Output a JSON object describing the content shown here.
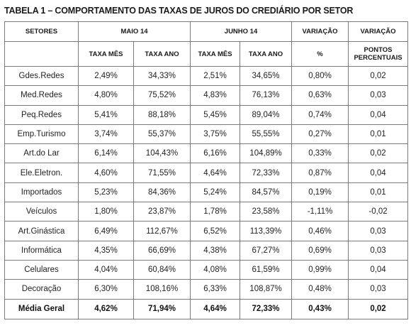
{
  "title": "TABELA 1 – COMPORTAMENTO DAS TAXAS DE JUROS DO CREDIÁRIO POR SETOR",
  "headers": {
    "setores": "SETORES",
    "maio": "MAIO 14",
    "junho": "JUNHO 14",
    "variacao_pct": "VARIAÇÃO",
    "variacao_pp": "VARIAÇÃO",
    "taxa_mes_maio": "TAXA MÊS",
    "taxa_ano_maio": "TAXA ANO",
    "taxa_mes_junho": "TAXA MÊS",
    "taxa_ano_junho": "TAXA ANO",
    "pct_sign": "%",
    "pontos_line1": "PONTOS",
    "pontos_line2": "PERCENTUAIS"
  },
  "rows": [
    {
      "setor": "Gdes.Redes",
      "maio_mes": "2,49%",
      "maio_ano": "34,33%",
      "junho_mes": "2,51%",
      "junho_ano": "34,65%",
      "var_pct": "0,80%",
      "var_pp": "0,02"
    },
    {
      "setor": "Med.Redes",
      "maio_mes": "4,80%",
      "maio_ano": "75,52%",
      "junho_mes": "4,83%",
      "junho_ano": "76,13%",
      "var_pct": "0,63%",
      "var_pp": "0,03"
    },
    {
      "setor": "Peq.Redes",
      "maio_mes": "5,41%",
      "maio_ano": "88,18%",
      "junho_mes": "5,45%",
      "junho_ano": "89,04%",
      "var_pct": "0,74%",
      "var_pp": "0,04"
    },
    {
      "setor": "Emp.Turismo",
      "maio_mes": "3,74%",
      "maio_ano": "55,37%",
      "junho_mes": "3,75%",
      "junho_ano": "55,55%",
      "var_pct": "0,27%",
      "var_pp": "0,01"
    },
    {
      "setor": "Art.do Lar",
      "maio_mes": "6,14%",
      "maio_ano": "104,43%",
      "junho_mes": "6,16%",
      "junho_ano": "104,89%",
      "var_pct": "0,33%",
      "var_pp": "0,02"
    },
    {
      "setor": "Ele.Eletron.",
      "maio_mes": "4,60%",
      "maio_ano": "71,55%",
      "junho_mes": "4,64%",
      "junho_ano": "72,33%",
      "var_pct": "0,87%",
      "var_pp": "0,04"
    },
    {
      "setor": "Importados",
      "maio_mes": "5,23%",
      "maio_ano": "84,36%",
      "junho_mes": "5,24%",
      "junho_ano": "84,57%",
      "var_pct": "0,19%",
      "var_pp": "0,01"
    },
    {
      "setor": "Veículos",
      "maio_mes": "1,80%",
      "maio_ano": "23,87%",
      "junho_mes": "1,78%",
      "junho_ano": "23,58%",
      "var_pct": "-1,11%",
      "var_pp": "-0,02"
    },
    {
      "setor": "Art.Ginástica",
      "maio_mes": "6,49%",
      "maio_ano": "112,67%",
      "junho_mes": "6,52%",
      "junho_ano": "113,39%",
      "var_pct": "0,46%",
      "var_pp": "0,03"
    },
    {
      "setor": "Informática",
      "maio_mes": "4,35%",
      "maio_ano": "66,69%",
      "junho_mes": "4,38%",
      "junho_ano": "67,27%",
      "var_pct": "0,69%",
      "var_pp": "0,03"
    },
    {
      "setor": "Celulares",
      "maio_mes": "4,04%",
      "maio_ano": "60,84%",
      "junho_mes": "4,08%",
      "junho_ano": "61,59%",
      "var_pct": "0,99%",
      "var_pp": "0,04"
    },
    {
      "setor": "Decoração",
      "maio_mes": "6,30%",
      "maio_ano": "108,16%",
      "junho_mes": "6,33%",
      "junho_ano": "108,87%",
      "var_pct": "0,48%",
      "var_pp": "0,03"
    }
  ],
  "footer": {
    "setor": "Média Geral",
    "maio_mes": "4,62%",
    "maio_ano": "71,94%",
    "junho_mes": "4,64%",
    "junho_ano": "72,33%",
    "var_pct": "0,43%",
    "var_pp": "0,02"
  },
  "colors": {
    "border": "#7a7a7a",
    "text": "#222222",
    "background": "#ffffff"
  }
}
